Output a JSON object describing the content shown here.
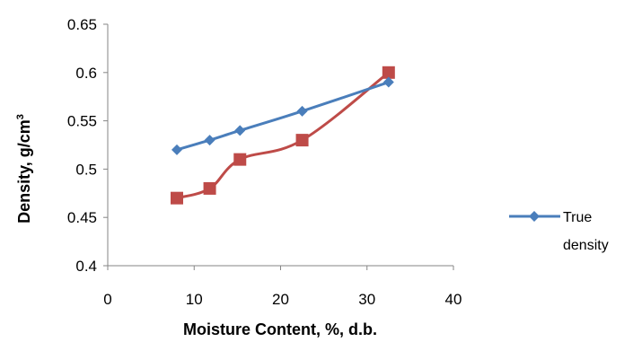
{
  "chart_data": {
    "type": "line",
    "title": "",
    "xlabel": "Moisture Content, %, d.b.",
    "ylabel_main": "Density, g/cm",
    "ylabel_sup": "3",
    "xlim": [
      0,
      40
    ],
    "ylim": [
      0.4,
      0.65
    ],
    "x_ticks": [
      "0",
      "10",
      "20",
      "30",
      "40"
    ],
    "y_ticks": [
      "0.4",
      "0.45",
      "0.5",
      "0.55",
      "0.6",
      "0.65"
    ],
    "grid": false,
    "legend_position": "right",
    "series": [
      {
        "name": "True density",
        "legend_lines": [
          "True",
          "density"
        ],
        "color": "#4a7ebb",
        "marker": "diamond",
        "x": [
          8,
          11.8,
          15.3,
          22.5,
          32.5
        ],
        "y": [
          0.52,
          0.53,
          0.54,
          0.56,
          0.59
        ]
      },
      {
        "color": "#be4b48",
        "marker": "square",
        "x": [
          8,
          11.8,
          15.3,
          22.5,
          32.5
        ],
        "y": [
          0.47,
          0.48,
          0.51,
          0.53,
          0.6
        ]
      }
    ]
  }
}
